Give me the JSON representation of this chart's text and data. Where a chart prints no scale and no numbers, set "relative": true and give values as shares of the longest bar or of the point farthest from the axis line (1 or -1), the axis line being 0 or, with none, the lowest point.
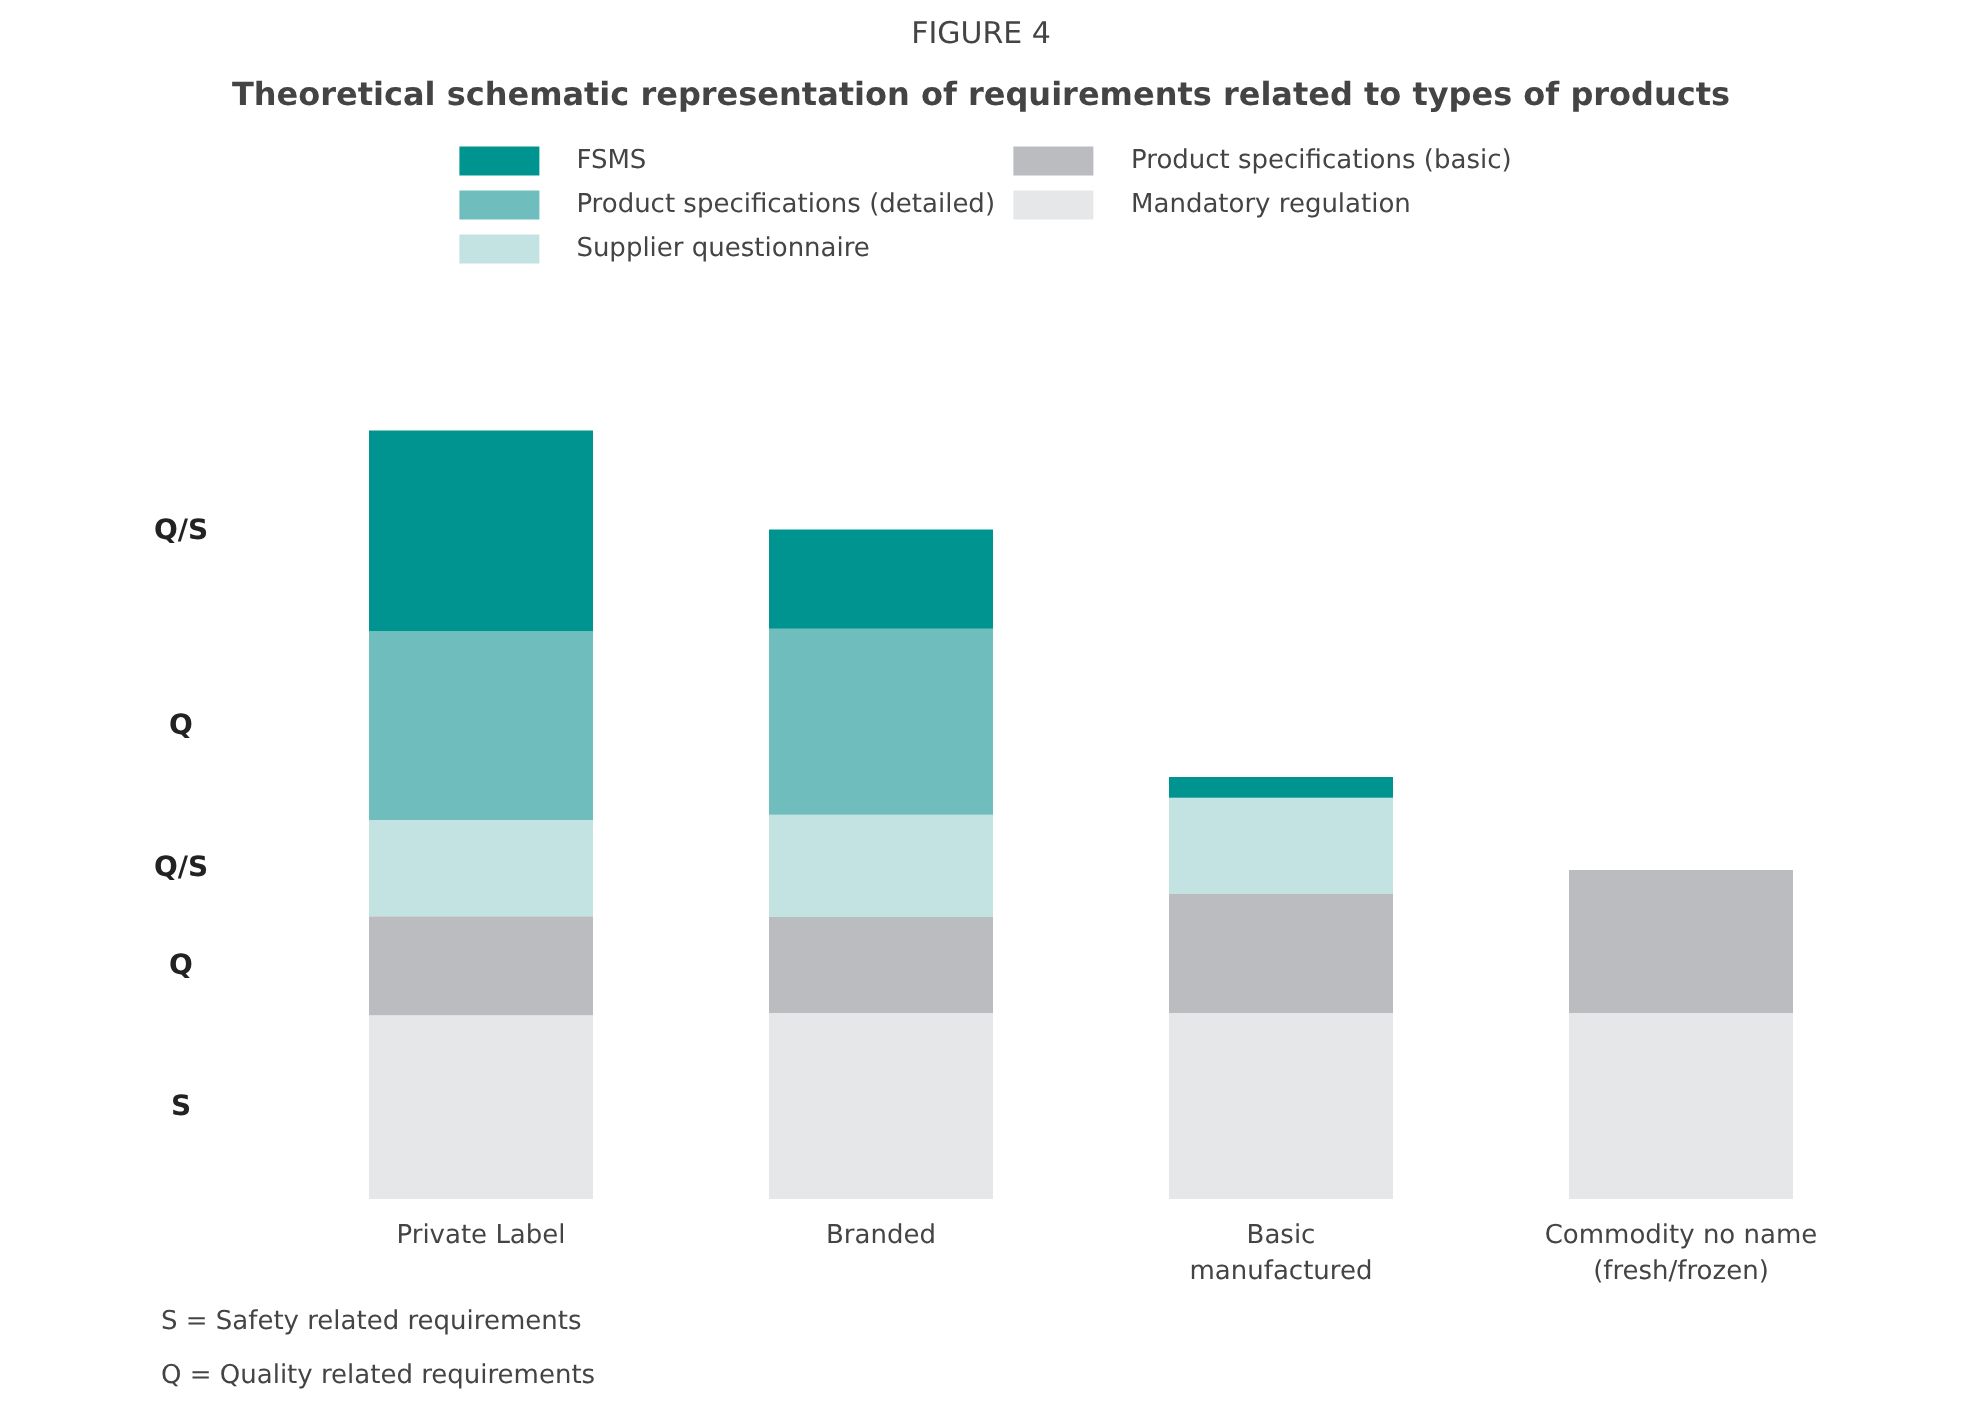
{
  "chart_data": {
    "type": "bar",
    "title": "FIGURE 4",
    "subtitle": "Theoretical schematic representation of requirements related to types of products",
    "categories": [
      "Private Label",
      "Branded",
      "Basic\nmanufactured",
      "Commodity no name\n(fresh/frozen)"
    ],
    "stacked": true,
    "relative": true,
    "legend": "top",
    "grid": false,
    "series": [
      {
        "name": "Mandatory regulation",
        "color": "#e6e7e8",
        "values": [
          0.239,
          0.242,
          0.242,
          0.242
        ]
      },
      {
        "name": "Product specifications (basic)",
        "color": "#bbbcc0",
        "values": [
          0.129,
          0.125,
          0.155,
          0.186
        ]
      },
      {
        "name": "Supplier questionnaire",
        "color": "#c2e3e1",
        "values": [
          0.125,
          0.133,
          0.125,
          0
        ]
      },
      {
        "name": "Product specifications (detailed)",
        "color": "#70bdbd",
        "values": [
          0.246,
          0.242,
          0,
          0
        ]
      },
      {
        "name": "FSMS",
        "color": "#009490",
        "values": [
          0.261,
          0.129,
          0.027,
          0
        ]
      }
    ],
    "annotations": [
      "S",
      "Q",
      "Q/S",
      "Q",
      "Q/S",
      "S  =  Safety related requirements",
      "Q  =  Quality related requirements"
    ]
  }
}
